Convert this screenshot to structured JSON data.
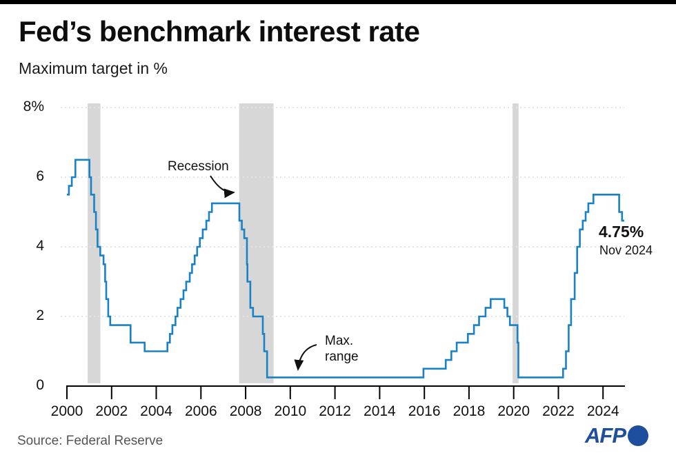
{
  "header": {
    "title": "Fed’s benchmark interest rate",
    "subtitle": "Maximum target in %"
  },
  "annotations": {
    "recession_label": "Recession",
    "max_range_line1": "Max.",
    "max_range_line2": "range",
    "latest_value": "4.75%",
    "latest_date": "Nov 2024"
  },
  "footer": {
    "source": "Source: Federal Reserve",
    "logo_text": "AFP"
  },
  "colors": {
    "line": "#1a82c4",
    "recession_band": "#d7d7d7",
    "grid": "#e4e4e4",
    "axis": "#000000",
    "afp_blue": "#1e4e9e",
    "source_text": "#545454"
  },
  "chart_data": {
    "type": "line",
    "step": true,
    "title": "Fed’s benchmark interest rate",
    "ylabel": "Maximum target in %",
    "xlim": [
      2000,
      2024.95
    ],
    "ylim": [
      0,
      8
    ],
    "x_ticks": [
      2000,
      2002,
      2004,
      2006,
      2008,
      2010,
      2012,
      2014,
      2016,
      2018,
      2020,
      2022,
      2024
    ],
    "y_ticks": [
      0,
      2,
      4,
      6,
      8
    ],
    "y_tick_labels": [
      "0",
      "2",
      "4",
      "6",
      "8%"
    ],
    "grid": "horizontal-dotted",
    "recessions": [
      [
        2000.93,
        2001.5
      ],
      [
        2007.71,
        2009.25
      ],
      [
        2019.95,
        2020.22
      ]
    ],
    "series": [
      {
        "name": "Fed benchmark interest rate (maximum target, %)",
        "points": [
          [
            2000.0,
            5.5
          ],
          [
            2000.09,
            5.75
          ],
          [
            2000.22,
            6.0
          ],
          [
            2000.38,
            6.5
          ],
          [
            2001.01,
            6.0
          ],
          [
            2001.08,
            5.5
          ],
          [
            2001.22,
            5.0
          ],
          [
            2001.3,
            4.5
          ],
          [
            2001.37,
            4.0
          ],
          [
            2001.49,
            3.75
          ],
          [
            2001.64,
            3.5
          ],
          [
            2001.71,
            3.0
          ],
          [
            2001.76,
            2.5
          ],
          [
            2001.85,
            2.0
          ],
          [
            2001.94,
            1.75
          ],
          [
            2002.85,
            1.25
          ],
          [
            2003.48,
            1.0
          ],
          [
            2004.5,
            1.25
          ],
          [
            2004.61,
            1.5
          ],
          [
            2004.72,
            1.75
          ],
          [
            2004.86,
            2.0
          ],
          [
            2004.95,
            2.25
          ],
          [
            2005.09,
            2.5
          ],
          [
            2005.22,
            2.75
          ],
          [
            2005.34,
            3.0
          ],
          [
            2005.5,
            3.25
          ],
          [
            2005.6,
            3.5
          ],
          [
            2005.72,
            3.75
          ],
          [
            2005.83,
            4.0
          ],
          [
            2005.95,
            4.25
          ],
          [
            2006.08,
            4.5
          ],
          [
            2006.24,
            4.75
          ],
          [
            2006.36,
            5.0
          ],
          [
            2006.49,
            5.25
          ],
          [
            2007.72,
            4.75
          ],
          [
            2007.83,
            4.5
          ],
          [
            2007.94,
            4.25
          ],
          [
            2008.06,
            3.5
          ],
          [
            2008.08,
            3.0
          ],
          [
            2008.21,
            2.25
          ],
          [
            2008.33,
            2.0
          ],
          [
            2008.77,
            1.5
          ],
          [
            2008.83,
            1.0
          ],
          [
            2008.96,
            0.25
          ],
          [
            2015.96,
            0.5
          ],
          [
            2016.96,
            0.75
          ],
          [
            2017.21,
            1.0
          ],
          [
            2017.45,
            1.25
          ],
          [
            2017.95,
            1.5
          ],
          [
            2018.22,
            1.75
          ],
          [
            2018.45,
            2.0
          ],
          [
            2018.74,
            2.25
          ],
          [
            2018.97,
            2.5
          ],
          [
            2019.58,
            2.25
          ],
          [
            2019.72,
            2.0
          ],
          [
            2019.83,
            1.75
          ],
          [
            2020.17,
            1.25
          ],
          [
            2020.21,
            0.25
          ],
          [
            2022.21,
            0.5
          ],
          [
            2022.34,
            1.0
          ],
          [
            2022.46,
            1.75
          ],
          [
            2022.57,
            2.5
          ],
          [
            2022.73,
            3.25
          ],
          [
            2022.84,
            4.0
          ],
          [
            2022.96,
            4.5
          ],
          [
            2023.09,
            4.75
          ],
          [
            2023.22,
            5.0
          ],
          [
            2023.34,
            5.25
          ],
          [
            2023.57,
            5.5
          ],
          [
            2024.72,
            5.0
          ],
          [
            2024.85,
            4.75
          ]
        ]
      }
    ],
    "end_label": {
      "value": "4.75%",
      "date": "Nov 2024"
    }
  }
}
